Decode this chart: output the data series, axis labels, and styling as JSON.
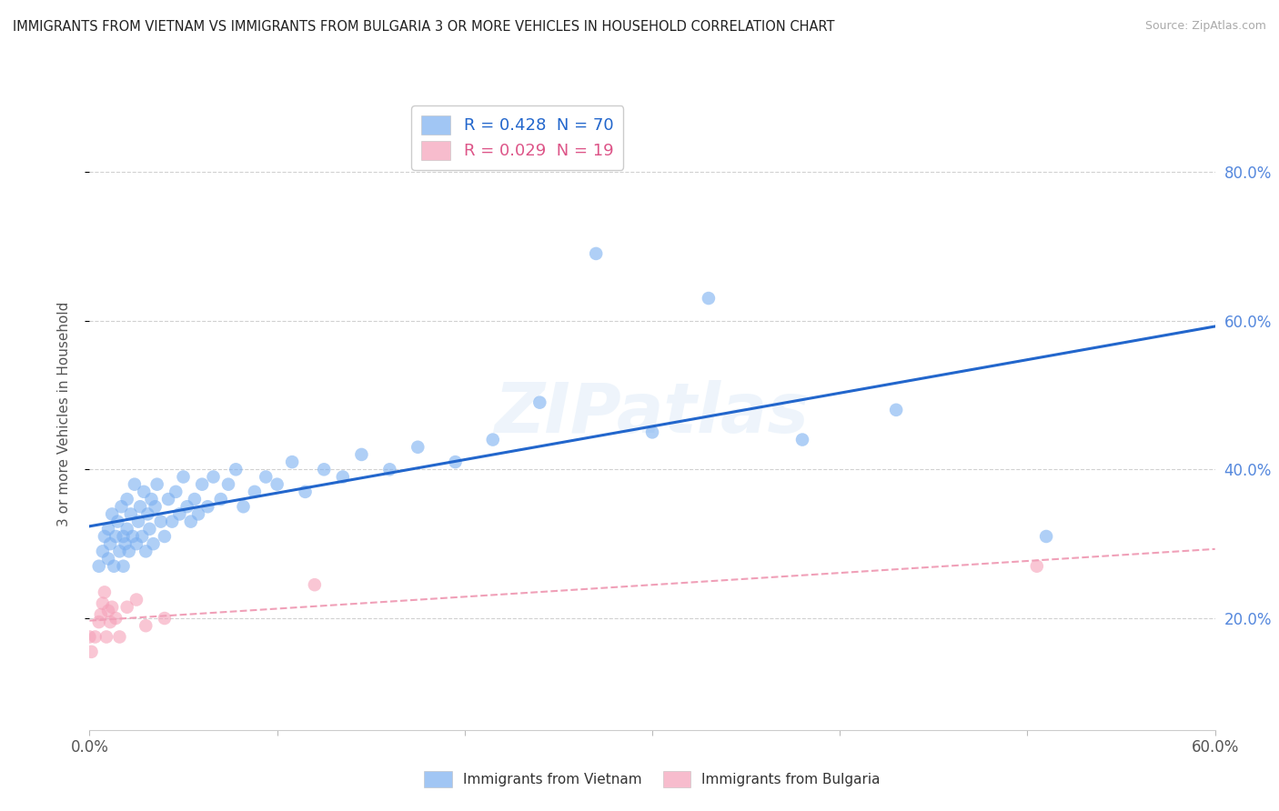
{
  "title": "IMMIGRANTS FROM VIETNAM VS IMMIGRANTS FROM BULGARIA 3 OR MORE VEHICLES IN HOUSEHOLD CORRELATION CHART",
  "source": "Source: ZipAtlas.com",
  "ylabel": "3 or more Vehicles in Household",
  "xlim": [
    0.0,
    0.6
  ],
  "ylim": [
    0.05,
    0.9
  ],
  "xtick_vals": [
    0.0,
    0.1,
    0.2,
    0.3,
    0.4,
    0.5,
    0.6
  ],
  "xtick_labels": [
    "0.0%",
    "",
    "",
    "",
    "",
    "",
    "60.0%"
  ],
  "ytick_vals": [
    0.2,
    0.4,
    0.6,
    0.8
  ],
  "ytick_labels": [
    "20.0%",
    "40.0%",
    "60.0%",
    "80.0%"
  ],
  "vietnam_R": 0.428,
  "vietnam_N": 70,
  "bulgaria_R": 0.029,
  "bulgaria_N": 19,
  "vietnam_color": "#7aaff0",
  "bulgaria_color": "#f5a0b8",
  "vietnam_line_color": "#2266cc",
  "bulgaria_line_color": "#f0a0b8",
  "watermark": "ZIPatlas",
  "vietnam_x": [
    0.005,
    0.007,
    0.008,
    0.01,
    0.01,
    0.011,
    0.012,
    0.013,
    0.014,
    0.015,
    0.016,
    0.017,
    0.018,
    0.018,
    0.019,
    0.02,
    0.02,
    0.021,
    0.022,
    0.023,
    0.024,
    0.025,
    0.026,
    0.027,
    0.028,
    0.029,
    0.03,
    0.031,
    0.032,
    0.033,
    0.034,
    0.035,
    0.036,
    0.038,
    0.04,
    0.042,
    0.044,
    0.046,
    0.048,
    0.05,
    0.052,
    0.054,
    0.056,
    0.058,
    0.06,
    0.063,
    0.066,
    0.07,
    0.074,
    0.078,
    0.082,
    0.088,
    0.094,
    0.1,
    0.108,
    0.115,
    0.125,
    0.135,
    0.145,
    0.16,
    0.175,
    0.195,
    0.215,
    0.24,
    0.27,
    0.3,
    0.33,
    0.38,
    0.43,
    0.51
  ],
  "vietnam_y": [
    0.27,
    0.29,
    0.31,
    0.28,
    0.32,
    0.3,
    0.34,
    0.27,
    0.31,
    0.33,
    0.29,
    0.35,
    0.31,
    0.27,
    0.3,
    0.32,
    0.36,
    0.29,
    0.34,
    0.31,
    0.38,
    0.3,
    0.33,
    0.35,
    0.31,
    0.37,
    0.29,
    0.34,
    0.32,
    0.36,
    0.3,
    0.35,
    0.38,
    0.33,
    0.31,
    0.36,
    0.33,
    0.37,
    0.34,
    0.39,
    0.35,
    0.33,
    0.36,
    0.34,
    0.38,
    0.35,
    0.39,
    0.36,
    0.38,
    0.4,
    0.35,
    0.37,
    0.39,
    0.38,
    0.41,
    0.37,
    0.4,
    0.39,
    0.42,
    0.4,
    0.43,
    0.41,
    0.44,
    0.49,
    0.69,
    0.45,
    0.63,
    0.44,
    0.48,
    0.31
  ],
  "bulgaria_x": [
    0.0,
    0.001,
    0.003,
    0.005,
    0.006,
    0.007,
    0.008,
    0.009,
    0.01,
    0.011,
    0.012,
    0.014,
    0.016,
    0.02,
    0.025,
    0.03,
    0.04,
    0.12,
    0.505
  ],
  "bulgaria_y": [
    0.175,
    0.155,
    0.175,
    0.195,
    0.205,
    0.22,
    0.235,
    0.175,
    0.21,
    0.195,
    0.215,
    0.2,
    0.175,
    0.215,
    0.225,
    0.19,
    0.2,
    0.245,
    0.27
  ]
}
